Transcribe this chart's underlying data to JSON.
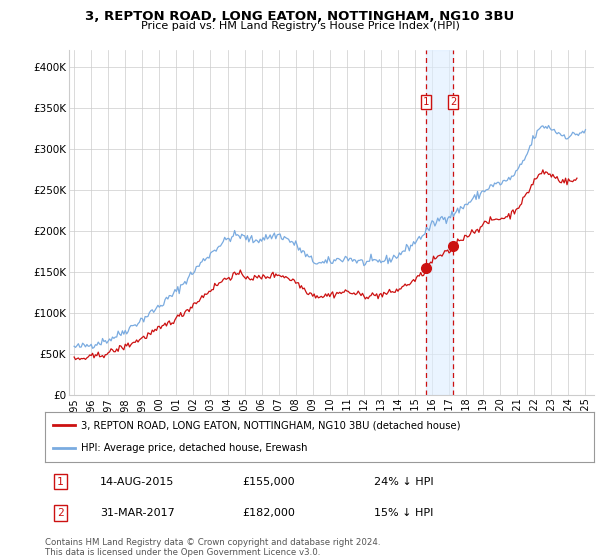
{
  "title": "3, REPTON ROAD, LONG EATON, NOTTINGHAM, NG10 3BU",
  "subtitle": "Price paid vs. HM Land Registry's House Price Index (HPI)",
  "hpi_color": "#7aabe0",
  "price_color": "#cc1111",
  "background_color": "#ffffff",
  "grid_color": "#cccccc",
  "shade_color": "#ddeeff",
  "ylim": [
    0,
    420000
  ],
  "yticks": [
    0,
    50000,
    100000,
    150000,
    200000,
    250000,
    300000,
    350000,
    400000
  ],
  "ytick_labels": [
    "£0",
    "£50K",
    "£100K",
    "£150K",
    "£200K",
    "£250K",
    "£300K",
    "£350K",
    "£400K"
  ],
  "xlim_start": 1994.7,
  "xlim_end": 2025.5,
  "sale1_date": 2015.62,
  "sale1_price": 155000,
  "sale2_date": 2017.25,
  "sale2_price": 182000,
  "legend_line1": "3, REPTON ROAD, LONG EATON, NOTTINGHAM, NG10 3BU (detached house)",
  "legend_line2": "HPI: Average price, detached house, Erewash",
  "table_row1": [
    "1",
    "14-AUG-2015",
    "£155,000",
    "24% ↓ HPI"
  ],
  "table_row2": [
    "2",
    "31-MAR-2017",
    "£182,000",
    "15% ↓ HPI"
  ],
  "footer": "Contains HM Land Registry data © Crown copyright and database right 2024.\nThis data is licensed under the Open Government Licence v3.0.",
  "xticks": [
    1995,
    1996,
    1997,
    1998,
    1999,
    2000,
    2001,
    2002,
    2003,
    2004,
    2005,
    2006,
    2007,
    2008,
    2009,
    2010,
    2011,
    2012,
    2013,
    2014,
    2015,
    2016,
    2017,
    2018,
    2019,
    2020,
    2021,
    2022,
    2023,
    2024,
    2025
  ],
  "hpi_anchors_x": [
    1995.0,
    1995.5,
    1996.0,
    1996.5,
    1997.0,
    1997.5,
    1998.0,
    1998.5,
    1999.0,
    1999.5,
    2000.0,
    2000.5,
    2001.0,
    2001.5,
    2002.0,
    2002.5,
    2003.0,
    2003.5,
    2004.0,
    2004.5,
    2005.0,
    2005.5,
    2006.0,
    2006.5,
    2007.0,
    2007.5,
    2008.0,
    2008.5,
    2009.0,
    2009.5,
    2010.0,
    2010.5,
    2011.0,
    2011.5,
    2012.0,
    2012.5,
    2013.0,
    2013.5,
    2014.0,
    2014.5,
    2015.0,
    2015.5,
    2016.0,
    2016.5,
    2017.0,
    2017.5,
    2018.0,
    2018.5,
    2019.0,
    2019.5,
    2020.0,
    2020.5,
    2021.0,
    2021.5,
    2022.0,
    2022.5,
    2023.0,
    2023.5,
    2024.0,
    2024.5,
    2025.0
  ],
  "hpi_anchors_y": [
    58000,
    59000,
    61000,
    64000,
    67000,
    72000,
    78000,
    85000,
    92000,
    100000,
    108000,
    117000,
    126000,
    138000,
    150000,
    162000,
    172000,
    182000,
    190000,
    195000,
    192000,
    188000,
    190000,
    193000,
    195000,
    190000,
    183000,
    172000,
    163000,
    160000,
    162000,
    165000,
    167000,
    164000,
    161000,
    162000,
    163000,
    165000,
    170000,
    178000,
    186000,
    196000,
    207000,
    215000,
    218000,
    224000,
    232000,
    240000,
    248000,
    255000,
    258000,
    262000,
    272000,
    290000,
    315000,
    328000,
    325000,
    318000,
    315000,
    318000,
    322000
  ],
  "price_anchors_x": [
    1995.0,
    1995.5,
    1996.0,
    1996.5,
    1997.0,
    1997.5,
    1998.0,
    1998.5,
    1999.0,
    1999.5,
    2000.0,
    2000.5,
    2001.0,
    2001.5,
    2002.0,
    2002.5,
    2003.0,
    2003.5,
    2004.0,
    2004.5,
    2005.0,
    2005.5,
    2006.0,
    2006.5,
    2007.0,
    2007.5,
    2008.0,
    2008.5,
    2009.0,
    2009.5,
    2010.0,
    2010.5,
    2011.0,
    2011.5,
    2012.0,
    2012.5,
    2013.0,
    2013.5,
    2014.0,
    2014.5,
    2015.0,
    2015.5,
    2015.62,
    2016.0,
    2016.5,
    2017.0,
    2017.25,
    2017.5,
    2018.0,
    2018.5,
    2019.0,
    2019.5,
    2020.0,
    2020.5,
    2021.0,
    2021.5,
    2022.0,
    2022.5,
    2023.0,
    2023.5,
    2024.0,
    2024.5
  ],
  "price_anchors_y": [
    43000,
    44000,
    46000,
    48000,
    51000,
    55000,
    59000,
    64000,
    69000,
    75000,
    80000,
    87000,
    93000,
    101000,
    110000,
    119000,
    128000,
    136000,
    143000,
    147000,
    145000,
    142000,
    143000,
    145000,
    147000,
    143000,
    138000,
    129000,
    122000,
    120000,
    122000,
    124000,
    126000,
    123000,
    121000,
    121000,
    122000,
    124000,
    128000,
    134000,
    140000,
    148000,
    155000,
    163000,
    170000,
    174000,
    182000,
    187000,
    194000,
    200000,
    207000,
    213000,
    215000,
    218000,
    228000,
    242000,
    262000,
    272000,
    268000,
    262000,
    260000,
    262000
  ]
}
